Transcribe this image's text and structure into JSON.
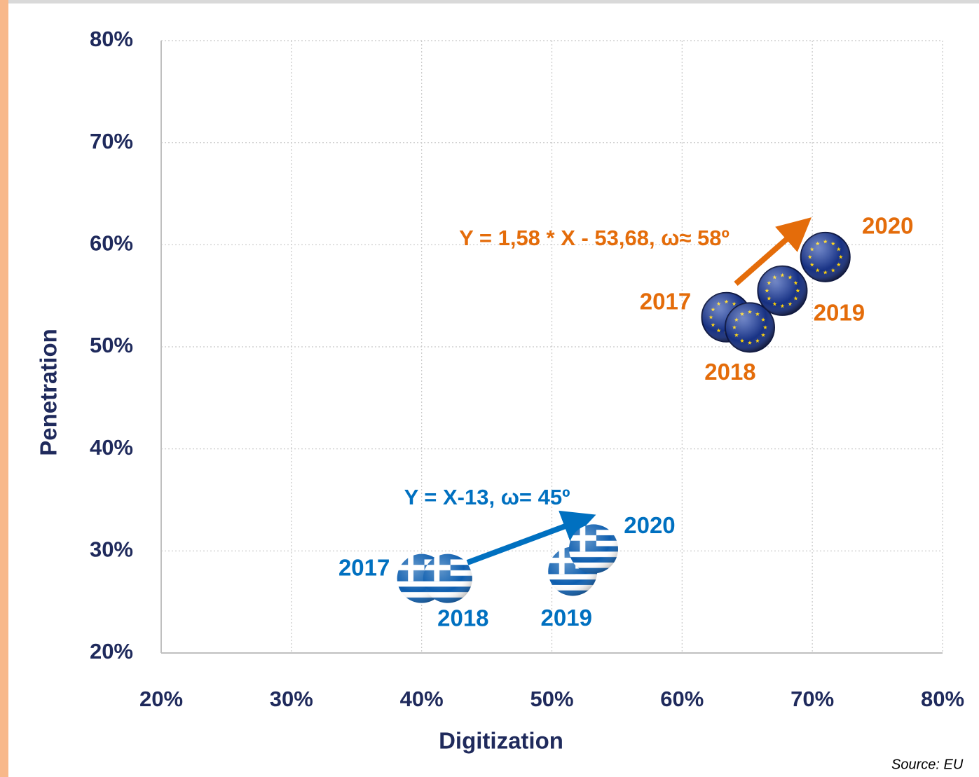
{
  "chart_data": {
    "type": "scatter",
    "xlabel": "Digitization",
    "ylabel": "Penetration",
    "xlim": [
      20,
      80
    ],
    "ylim": [
      20,
      80
    ],
    "xticks": [
      {
        "value": 20,
        "label": "20%"
      },
      {
        "value": 30,
        "label": "30%"
      },
      {
        "value": 40,
        "label": "40%"
      },
      {
        "value": 50,
        "label": "50%"
      },
      {
        "value": 60,
        "label": "60%"
      },
      {
        "value": 70,
        "label": "70%"
      },
      {
        "value": 80,
        "label": "80%"
      }
    ],
    "yticks": [
      {
        "value": 20,
        "label": "20%"
      },
      {
        "value": 30,
        "label": "30%"
      },
      {
        "value": 40,
        "label": "40%"
      },
      {
        "value": 50,
        "label": "50%"
      },
      {
        "value": 60,
        "label": "60%"
      },
      {
        "value": 70,
        "label": "70%"
      },
      {
        "value": 80,
        "label": "80%"
      }
    ],
    "grid": true,
    "series": [
      {
        "color": "#0070c0",
        "marker": "greece-flag",
        "x": [
          40,
          42,
          51.6,
          53.2
        ],
        "values": [
          27.3,
          27.3,
          28,
          30.2
        ],
        "labels": [
          "2017",
          "2018",
          "2019",
          "2020"
        ]
      },
      {
        "color": "#e46c0a",
        "marker": "eu-flag",
        "x": [
          63.4,
          65.2,
          67.7,
          71
        ],
        "values": [
          52.9,
          51.9,
          55.5,
          58.8
        ],
        "labels": [
          "2017",
          "2018",
          "2019",
          "2020"
        ]
      }
    ],
    "annotations": [
      {
        "text": "Y = X-13, ω= 45º",
        "color": "#0070c0"
      },
      {
        "text": "Y = 1,58 * X  - 53,68, ω≈ 58º",
        "color": "#e46c0a"
      }
    ],
    "source": "Source: EU"
  }
}
